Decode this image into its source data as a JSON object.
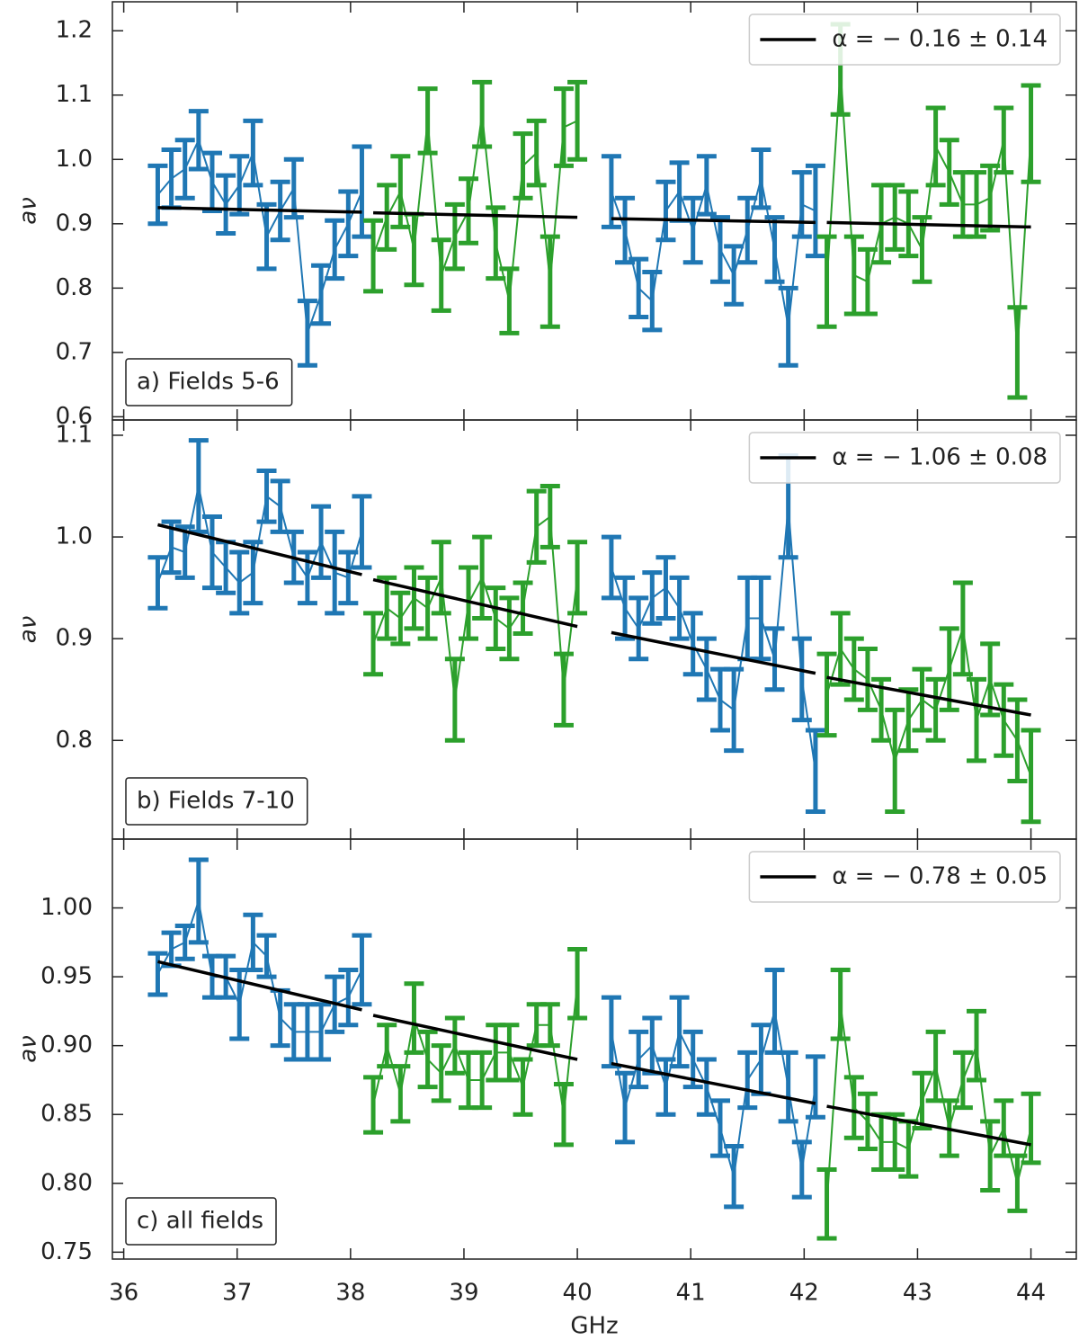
{
  "chart_data": [
    {
      "type": "errorbar",
      "annotation": "a) Fields 5-6",
      "ylabel": "aν",
      "xlim": [
        35.9,
        44.4
      ],
      "xticks": [
        36,
        37,
        38,
        39,
        40,
        41,
        42,
        43,
        44
      ],
      "ylim": [
        0.595,
        1.245
      ],
      "yticks": [
        0.6,
        0.7,
        0.8,
        0.9,
        {
          "value": 1,
          "label": "1.0"
        },
        1.1,
        1.2
      ],
      "legend": "upper right",
      "series": [
        {
          "color": "#1f77b4",
          "x": [
            36.3,
            36.42,
            36.54,
            36.66,
            36.78,
            36.9,
            37.02,
            37.14,
            37.26,
            37.38,
            37.5,
            37.62,
            37.74,
            37.86,
            37.98,
            38.1
          ],
          "values": [
            0.945,
            0.97,
            0.985,
            1.03,
            0.965,
            0.93,
            0.96,
            1.01,
            0.88,
            0.92,
            0.955,
            0.73,
            0.79,
            0.86,
            0.9,
            0.95
          ],
          "errors": [
            0.045,
            0.045,
            0.045,
            0.045,
            0.045,
            0.045,
            0.045,
            0.05,
            0.05,
            0.045,
            0.045,
            0.05,
            0.045,
            0.045,
            0.05,
            0.07
          ]
        },
        {
          "color": "#2ca02c",
          "x": [
            38.2,
            38.32,
            38.44,
            38.56,
            38.68,
            38.8,
            38.92,
            39.04,
            39.16,
            39.28,
            39.4,
            39.52,
            39.64,
            39.76,
            39.88,
            40.0
          ],
          "values": [
            0.85,
            0.91,
            0.95,
            0.86,
            1.06,
            0.82,
            0.88,
            0.92,
            1.07,
            0.87,
            0.78,
            0.99,
            1.01,
            0.81,
            1.05,
            1.06
          ],
          "errors": [
            0.055,
            0.05,
            0.055,
            0.055,
            0.05,
            0.055,
            0.05,
            0.05,
            0.05,
            0.055,
            0.05,
            0.05,
            0.05,
            0.07,
            0.06,
            0.06
          ]
        },
        {
          "color": "#1f77b4",
          "x": [
            40.3,
            40.42,
            40.54,
            40.66,
            40.78,
            40.9,
            41.02,
            41.14,
            41.26,
            41.38,
            41.5,
            41.62,
            41.74,
            41.86,
            41.98,
            42.1
          ],
          "values": [
            0.95,
            0.89,
            0.8,
            0.78,
            0.92,
            0.95,
            0.89,
            0.96,
            0.86,
            0.82,
            0.89,
            0.97,
            0.86,
            0.74,
            0.93,
            0.92
          ],
          "errors": [
            0.055,
            0.05,
            0.045,
            0.045,
            0.045,
            0.045,
            0.05,
            0.045,
            0.05,
            0.045,
            0.05,
            0.045,
            0.05,
            0.06,
            0.05,
            0.07
          ]
        },
        {
          "color": "#2ca02c",
          "x": [
            42.2,
            42.32,
            42.44,
            42.56,
            42.68,
            42.8,
            42.92,
            43.04,
            43.16,
            43.28,
            43.4,
            43.52,
            43.64,
            43.76,
            43.88,
            44.0
          ],
          "values": [
            0.81,
            1.14,
            0.82,
            0.81,
            0.9,
            0.91,
            0.9,
            0.86,
            1.02,
            0.98,
            0.93,
            0.93,
            0.94,
            1.03,
            0.7,
            1.04
          ],
          "errors": [
            0.07,
            0.07,
            0.06,
            0.05,
            0.06,
            0.05,
            0.05,
            0.05,
            0.06,
            0.05,
            0.05,
            0.05,
            0.05,
            0.05,
            0.07,
            0.075
          ]
        },
        {
          "name": "α = − 0.16 ± 0.14",
          "color": "#000000",
          "fit": true,
          "x": [
            36.3,
            38.1,
            38.15,
            38.2,
            40.0,
            40.15,
            40.3,
            42.1,
            42.15,
            42.2,
            44.0
          ],
          "values": [
            0.925,
            0.918,
            null,
            0.917,
            0.91,
            null,
            0.908,
            0.902,
            null,
            0.902,
            0.895
          ]
        }
      ]
    },
    {
      "type": "errorbar",
      "annotation": "b) Fields 7-10",
      "ylabel": "aν",
      "xlim": [
        35.9,
        44.4
      ],
      "xticks": [
        36,
        37,
        38,
        39,
        40,
        41,
        42,
        43,
        44
      ],
      "ylim": [
        0.703,
        1.115
      ],
      "yticks": [
        0.8,
        0.9,
        {
          "value": 1,
          "label": "1.0"
        },
        1.1
      ],
      "legend": "upper right",
      "series": [
        {
          "color": "#1f77b4",
          "x": [
            36.3,
            36.42,
            36.54,
            36.66,
            36.78,
            36.9,
            37.02,
            37.14,
            37.26,
            37.38,
            37.5,
            37.62,
            37.74,
            37.86,
            37.98,
            38.1
          ],
          "values": [
            0.955,
            0.99,
            0.985,
            1.05,
            0.985,
            0.97,
            0.955,
            0.965,
            1.04,
            1.03,
            0.98,
            0.96,
            0.995,
            0.965,
            0.96,
            1.005
          ],
          "errors": [
            0.025,
            0.025,
            0.025,
            0.045,
            0.035,
            0.025,
            0.03,
            0.03,
            0.025,
            0.025,
            0.025,
            0.025,
            0.035,
            0.04,
            0.025,
            0.035
          ]
        },
        {
          "color": "#2ca02c",
          "x": [
            38.2,
            38.32,
            38.44,
            38.56,
            38.68,
            38.8,
            38.92,
            39.04,
            39.16,
            39.28,
            39.4,
            39.52,
            39.64,
            39.76,
            39.88,
            40.0
          ],
          "values": [
            0.895,
            0.93,
            0.92,
            0.94,
            0.93,
            0.96,
            0.84,
            0.935,
            0.96,
            0.92,
            0.91,
            0.93,
            1.01,
            1.02,
            0.85,
            0.96
          ],
          "errors": [
            0.03,
            0.03,
            0.025,
            0.03,
            0.03,
            0.035,
            0.04,
            0.035,
            0.04,
            0.03,
            0.03,
            0.025,
            0.035,
            0.03,
            0.035,
            0.035
          ]
        },
        {
          "color": "#1f77b4",
          "x": [
            40.3,
            40.42,
            40.54,
            40.66,
            40.78,
            40.9,
            41.02,
            41.14,
            41.26,
            41.38,
            41.5,
            41.62,
            41.74,
            41.86,
            41.98,
            42.1
          ],
          "values": [
            0.97,
            0.93,
            0.91,
            0.94,
            0.95,
            0.93,
            0.895,
            0.87,
            0.84,
            0.83,
            0.92,
            0.92,
            0.88,
            1.03,
            0.86,
            0.77
          ],
          "errors": [
            0.03,
            0.03,
            0.03,
            0.025,
            0.03,
            0.03,
            0.03,
            0.03,
            0.03,
            0.04,
            0.04,
            0.04,
            0.03,
            0.05,
            0.04,
            0.04
          ]
        },
        {
          "color": "#2ca02c",
          "x": [
            42.2,
            42.32,
            42.44,
            42.56,
            42.68,
            42.8,
            42.92,
            43.04,
            43.16,
            43.28,
            43.4,
            43.52,
            43.64,
            43.76,
            43.88,
            44.0
          ],
          "values": [
            0.845,
            0.89,
            0.87,
            0.86,
            0.83,
            0.78,
            0.82,
            0.84,
            0.83,
            0.87,
            0.91,
            0.82,
            0.86,
            0.82,
            0.8,
            0.765
          ],
          "errors": [
            0.04,
            0.035,
            0.03,
            0.03,
            0.03,
            0.05,
            0.03,
            0.03,
            0.03,
            0.04,
            0.045,
            0.04,
            0.035,
            0.035,
            0.04,
            0.045
          ]
        },
        {
          "name": "α = − 1.06 ± 0.08",
          "color": "#000000",
          "fit": true,
          "x": [
            36.3,
            38.1,
            38.15,
            38.2,
            40.0,
            40.15,
            40.3,
            42.1,
            42.15,
            42.2,
            44.0
          ],
          "values": [
            1.012,
            0.963,
            null,
            0.958,
            0.912,
            null,
            0.906,
            0.866,
            null,
            0.862,
            0.825
          ]
        }
      ]
    },
    {
      "type": "errorbar",
      "annotation": "c) all fields",
      "ylabel": "aν",
      "xlabel": "GHz",
      "xlim": [
        35.9,
        44.4
      ],
      "xticks": [
        36,
        37,
        38,
        39,
        40,
        41,
        42,
        43,
        44
      ],
      "ylim": [
        0.745,
        1.05
      ],
      "yticks": [
        0.75,
        {
          "value": 0.8,
          "label": "0.80"
        },
        0.85,
        {
          "value": 0.9,
          "label": "0.90"
        },
        0.95,
        {
          "value": 1,
          "label": "1.00"
        }
      ],
      "legend": "upper right",
      "series": [
        {
          "color": "#1f77b4",
          "x": [
            36.3,
            36.42,
            36.54,
            36.66,
            36.78,
            36.9,
            37.02,
            37.14,
            37.26,
            37.38,
            37.5,
            37.62,
            37.74,
            37.86,
            37.98,
            38.1
          ],
          "values": [
            0.952,
            0.97,
            0.975,
            1.005,
            0.95,
            0.95,
            0.93,
            0.975,
            0.965,
            0.92,
            0.91,
            0.91,
            0.91,
            0.93,
            0.935,
            0.955
          ],
          "errors": [
            0.015,
            0.012,
            0.012,
            0.03,
            0.015,
            0.015,
            0.025,
            0.02,
            0.015,
            0.02,
            0.02,
            0.02,
            0.02,
            0.02,
            0.02,
            0.025
          ]
        },
        {
          "color": "#2ca02c",
          "x": [
            38.2,
            38.32,
            38.44,
            38.56,
            38.68,
            38.8,
            38.92,
            39.04,
            39.16,
            39.28,
            39.4,
            39.52,
            39.64,
            39.76,
            39.88,
            40.0
          ],
          "values": [
            0.857,
            0.9,
            0.865,
            0.92,
            0.89,
            0.88,
            0.9,
            0.875,
            0.875,
            0.895,
            0.895,
            0.87,
            0.915,
            0.915,
            0.85,
            0.945
          ],
          "errors": [
            0.02,
            0.015,
            0.02,
            0.025,
            0.02,
            0.02,
            0.02,
            0.02,
            0.02,
            0.02,
            0.02,
            0.02,
            0.015,
            0.015,
            0.022,
            0.025
          ]
        },
        {
          "color": "#1f77b4",
          "x": [
            40.3,
            40.42,
            40.54,
            40.66,
            40.78,
            40.9,
            41.02,
            41.14,
            41.26,
            41.38,
            41.5,
            41.62,
            41.74,
            41.86,
            41.98,
            42.1
          ],
          "values": [
            0.91,
            0.855,
            0.89,
            0.9,
            0.87,
            0.91,
            0.89,
            0.87,
            0.84,
            0.805,
            0.875,
            0.89,
            0.925,
            0.87,
            0.81,
            0.87
          ],
          "errors": [
            0.025,
            0.025,
            0.02,
            0.02,
            0.02,
            0.025,
            0.02,
            0.02,
            0.02,
            0.022,
            0.02,
            0.025,
            0.03,
            0.025,
            0.02,
            0.022
          ]
        },
        {
          "color": "#2ca02c",
          "x": [
            42.2,
            42.32,
            42.44,
            42.56,
            42.68,
            42.8,
            42.92,
            43.04,
            43.16,
            43.28,
            43.4,
            43.52,
            43.64,
            43.76,
            43.88,
            44.0
          ],
          "values": [
            0.785,
            0.93,
            0.855,
            0.845,
            0.83,
            0.83,
            0.825,
            0.86,
            0.885,
            0.84,
            0.875,
            0.9,
            0.82,
            0.84,
            0.8,
            0.84
          ],
          "errors": [
            0.025,
            0.025,
            0.022,
            0.02,
            0.02,
            0.02,
            0.02,
            0.02,
            0.025,
            0.02,
            0.02,
            0.025,
            0.025,
            0.02,
            0.02,
            0.025
          ]
        },
        {
          "name": "α = − 0.78 ± 0.05",
          "color": "#000000",
          "fit": true,
          "x": [
            36.3,
            38.1,
            38.15,
            38.2,
            40.0,
            40.15,
            40.3,
            42.1,
            42.15,
            42.2,
            44.0
          ],
          "values": [
            0.961,
            0.926,
            null,
            0.922,
            0.89,
            null,
            0.887,
            0.858,
            null,
            0.856,
            0.828
          ]
        }
      ]
    }
  ]
}
